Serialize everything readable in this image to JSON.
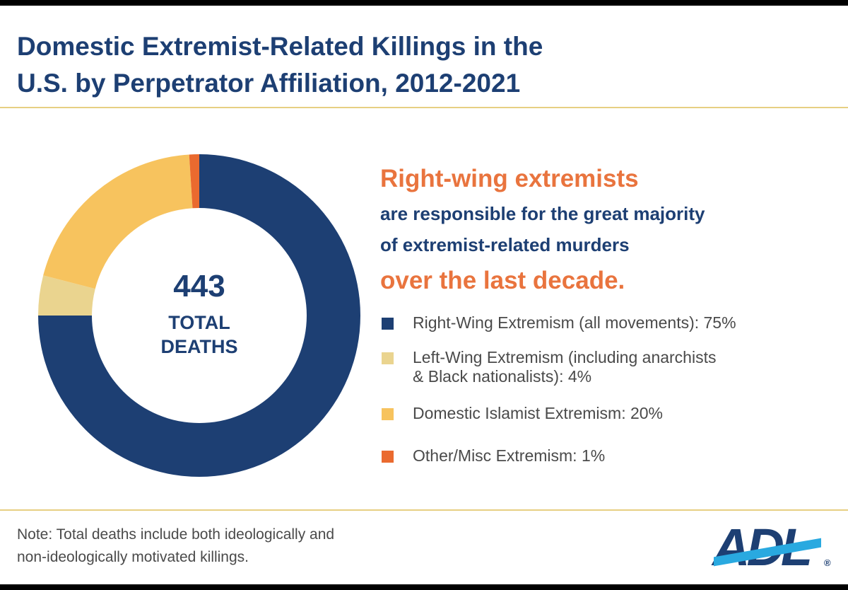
{
  "title_line1": "Domestic Extremist-Related Killings in the",
  "title_line2": "U.S. by Perpetrator Affiliation, 2012-2021",
  "headline": {
    "line1": "Right-wing extremists",
    "line2": "are responsible for the great majority",
    "line3": "of extremist-related murders",
    "line4": "over the last decade."
  },
  "center": {
    "total": "443",
    "label_line1": "TOTAL",
    "label_line2": "DEATHS"
  },
  "legend": {
    "item1": "Right-Wing Extremism (all movements):  75%",
    "item2_line1": "Left-Wing Extremism (including anarchists",
    "item2_line2": "& Black nationalists):  4%",
    "item3": "Domestic Islamist Extremism: 20%",
    "item4": "Other/Misc Extremism: 1%"
  },
  "note_line1": "Note: Total deaths include both ideologically and",
  "note_line2": "non-ideologically motivated killings.",
  "logo": {
    "text": "ADL",
    "reg": "®"
  },
  "colors": {
    "navy": "#1d3f73",
    "orange": "#e9743e",
    "left_wing": "#ead48f",
    "islamist": "#f7c35e",
    "other": "#ea6a2f",
    "rule": "#e7cf82"
  },
  "chart_data": {
    "type": "pie",
    "variant": "donut",
    "total": 443,
    "start_angle_deg": 0,
    "direction": "clockwise",
    "slices": [
      {
        "label": "Right-Wing Extremism (all movements)",
        "value": 75,
        "color": "#1d3f73"
      },
      {
        "label": "Left-Wing Extremism (including anarchists & Black nationalists)",
        "value": 4,
        "color": "#ead48f"
      },
      {
        "label": "Domestic Islamist Extremism",
        "value": 20,
        "color": "#f7c35e"
      },
      {
        "label": "Other/Misc Extremism",
        "value": 1,
        "color": "#ea6a2f"
      }
    ]
  }
}
